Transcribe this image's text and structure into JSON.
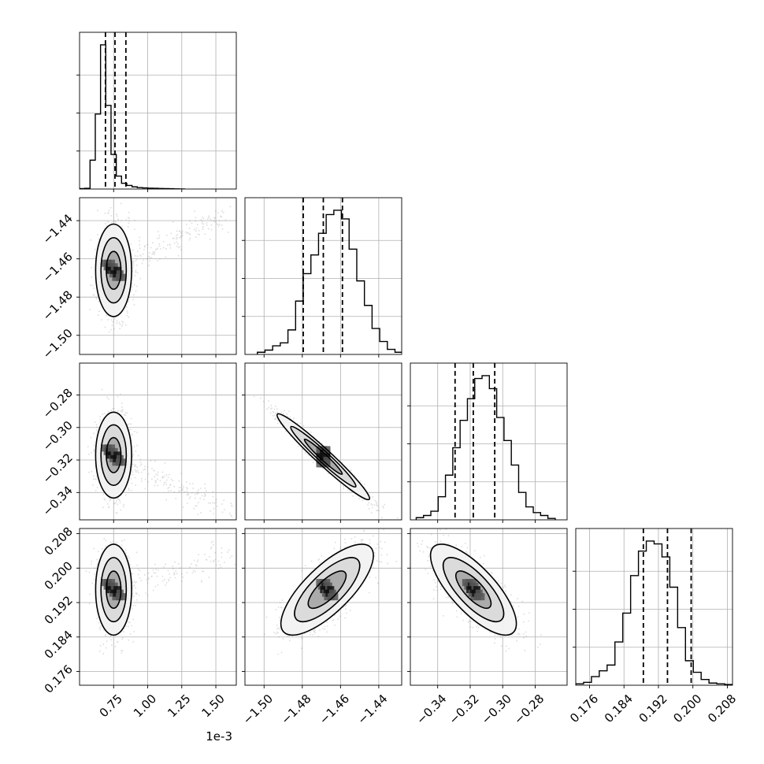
{
  "chart_data": {
    "type": "corner",
    "description_ref": "corner plot of 4 parameters",
    "parameters": [
      {
        "range": [
          0.0005,
          0.00165
        ],
        "scale_offset": "1e-3",
        "ticks": [
          0.00075,
          0.001,
          0.00125,
          0.0015
        ],
        "tick_labels": [
          "0.75",
          "1.00",
          "1.25",
          "1.50"
        ],
        "quantiles": [
          0.00069,
          0.00076,
          0.00084
        ],
        "histogram": {
          "bin_start": 0.0005,
          "bin_width": 3.85e-05,
          "counts": [
            0.3,
            0.5,
            20,
            52,
            100,
            58,
            24,
            9,
            4,
            2.5,
            1.5,
            1,
            0.8,
            0.6,
            0.5,
            0.4,
            0.3,
            0.2,
            0.1,
            0.05
          ],
          "max": 100
        }
      },
      {
        "range": [
          -1.51,
          -1.428
        ],
        "ticks": [
          -1.5,
          -1.48,
          -1.46,
          -1.44
        ],
        "tick_labels": [
          "−1.50",
          "−1.48",
          "−1.46",
          "−1.44"
        ],
        "quantiles": [
          -1.4795,
          -1.469,
          -1.459
        ],
        "histogram": {
          "bin_start": -1.5035,
          "bin_width": 0.004,
          "counts": [
            1.5,
            3,
            6,
            8,
            17,
            37,
            56,
            69,
            84,
            97,
            100,
            94,
            73,
            51,
            34,
            18,
            9,
            3.5,
            1.5
          ],
          "max": 100
        }
      },
      {
        "range": [
          -0.3568,
          -0.2604
        ],
        "ticks": [
          -0.34,
          -0.32,
          -0.3,
          -0.28
        ],
        "tick_labels": [
          "−0.34",
          "−0.32",
          "−0.30",
          "−0.28"
        ],
        "quantiles": [
          -0.3293,
          -0.3181,
          -0.3049
        ],
        "histogram": {
          "bin_start": -0.3532,
          "bin_width": 0.0045,
          "counts": [
            1.5,
            3,
            6,
            16,
            31,
            50,
            69,
            84,
            98,
            100,
            91,
            71,
            55,
            38,
            19,
            9,
            5,
            3,
            1
          ],
          "max": 100
        }
      },
      {
        "range": [
          0.1728,
          0.2092
        ],
        "ticks": [
          0.176,
          0.184,
          0.192,
          0.2,
          0.208
        ],
        "tick_labels": [
          "0.176",
          "0.184",
          "0.192",
          "0.200",
          "0.208"
        ],
        "quantiles": [
          0.1885,
          0.1941,
          0.1996
        ],
        "histogram": {
          "bin_start": 0.1728,
          "bin_width": 0.00182,
          "counts": [
            1,
            2,
            6,
            10,
            14,
            30,
            50,
            76,
            93,
            100,
            98,
            89,
            68,
            40,
            17,
            9,
            4,
            1.5,
            1,
            0.5
          ],
          "max": 100
        }
      }
    ],
    "pairs": [
      {
        "x": 0,
        "y": 1,
        "center": [
          0.00075,
          -1.466
        ],
        "spread": [
          6e-05,
          0.011
        ],
        "rho": 0.0,
        "tail": {
          "to": [
            0.0016,
            -1.435
          ],
          "weight": 0.12
        }
      },
      {
        "x": 0,
        "y": 2,
        "center": [
          0.00075,
          -0.317
        ],
        "spread": [
          6e-05,
          0.012
        ],
        "rho": 0.0,
        "tail": {
          "to": [
            0.0016,
            -0.352
          ],
          "weight": 0.12
        }
      },
      {
        "x": 0,
        "y": 3,
        "center": [
          0.00075,
          0.195
        ],
        "spread": [
          6e-05,
          0.0048
        ],
        "rho": 0.0,
        "tail": {
          "to": [
            0.0016,
            0.203
          ],
          "weight": 0.1
        }
      },
      {
        "x": 1,
        "y": 2,
        "center": [
          -1.469,
          -0.318
        ],
        "spread": [
          0.011,
          0.012
        ],
        "rho": -0.97
      },
      {
        "x": 1,
        "y": 3,
        "center": [
          -1.467,
          0.195
        ],
        "spread": [
          0.011,
          0.0048
        ],
        "rho": 0.75
      },
      {
        "x": 2,
        "y": 3,
        "center": [
          -0.318,
          0.195
        ],
        "spread": [
          0.012,
          0.0048
        ],
        "rho": -0.75
      }
    ],
    "grid": true,
    "quantile_line_style": "dashed",
    "contour_levels": 3
  }
}
